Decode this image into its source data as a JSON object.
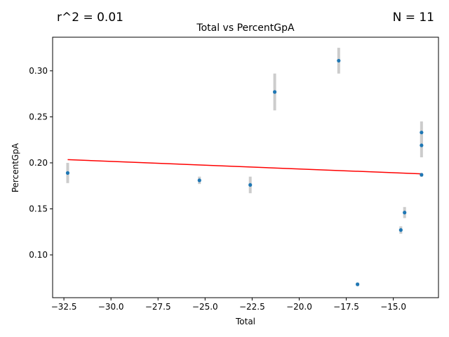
{
  "chart_data": {
    "type": "scatter",
    "title": "Total vs PercentGpA",
    "xlabel": "Total",
    "ylabel": "PercentGpA",
    "annotation_left": "r^2 = 0.01",
    "annotation_right": "N = 11",
    "xlim": [
      -33.1,
      -12.6
    ],
    "ylim": [
      0.0535,
      0.3365
    ],
    "xticks": [
      -32.5,
      -30.0,
      -27.5,
      -25.0,
      -22.5,
      -20.0,
      -17.5,
      -15.0
    ],
    "xtick_labels": [
      "−32.5",
      "−30.0",
      "−27.5",
      "−25.0",
      "−22.5",
      "−20.0",
      "−17.5",
      "−15.0"
    ],
    "yticks": [
      0.1,
      0.15,
      0.2,
      0.25,
      0.3
    ],
    "ytick_labels": [
      "0.10",
      "0.15",
      "0.20",
      "0.25",
      "0.30"
    ],
    "grid": false,
    "colors": {
      "points": "#1f77b4",
      "fit_line": "#ff0000",
      "error_bars": "#cccccc"
    },
    "points": [
      {
        "x": -32.3,
        "y": 0.189,
        "err": 0.011
      },
      {
        "x": -25.3,
        "y": 0.181,
        "err": 0.004
      },
      {
        "x": -22.6,
        "y": 0.176,
        "err": 0.009
      },
      {
        "x": -21.3,
        "y": 0.277,
        "err": 0.02
      },
      {
        "x": -17.9,
        "y": 0.311,
        "err": 0.014
      },
      {
        "x": -16.9,
        "y": 0.068,
        "err": 0.002
      },
      {
        "x": -14.6,
        "y": 0.127,
        "err": 0.004
      },
      {
        "x": -14.4,
        "y": 0.146,
        "err": 0.006
      },
      {
        "x": -13.5,
        "y": 0.233,
        "err": 0.012
      },
      {
        "x": -13.5,
        "y": 0.219,
        "err": 0.013
      },
      {
        "x": -13.5,
        "y": 0.187,
        "err": 0.002
      }
    ],
    "fit_line": {
      "x": [
        -32.3,
        -13.5
      ],
      "y": [
        0.2035,
        0.188
      ]
    }
  }
}
